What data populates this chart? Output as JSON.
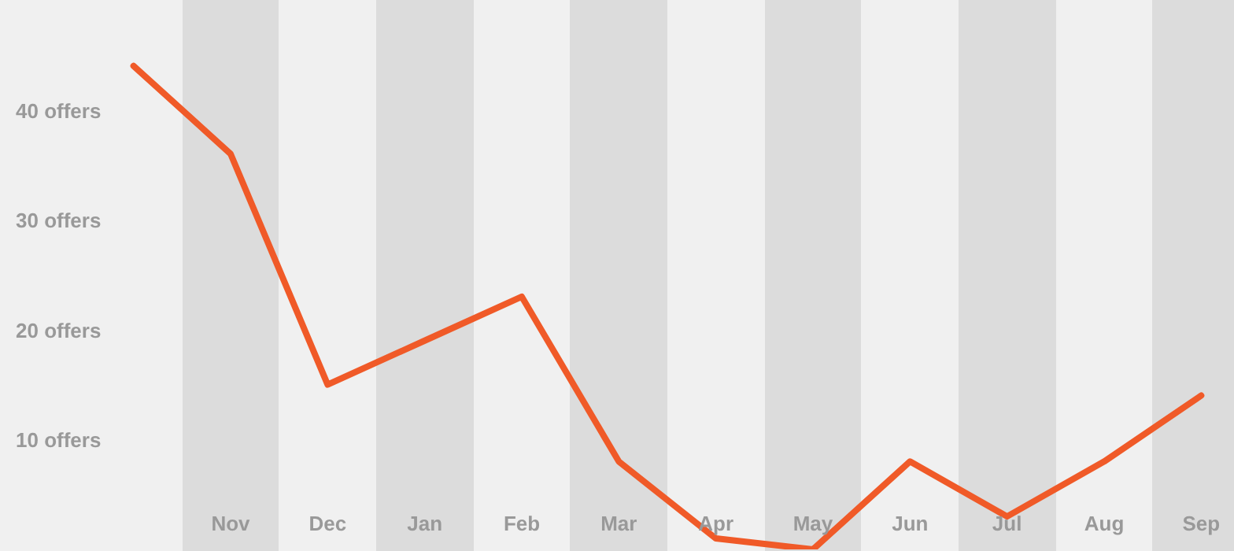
{
  "chart_data": {
    "type": "line",
    "categories": [
      null,
      "Nov",
      "Dec",
      "Jan",
      "Feb",
      "Mar",
      "Apr",
      "May",
      "Jun",
      "Jul",
      "Aug",
      "Sep"
    ],
    "series": [
      {
        "color": "#f05a28",
        "values": [
          44,
          36,
          15,
          19,
          23,
          8,
          1,
          0,
          8,
          3,
          8,
          14
        ]
      }
    ],
    "ylim": [
      0,
      50
    ],
    "yticks": [
      {
        "value": 10,
        "label": "10 offers"
      },
      {
        "value": 20,
        "label": "20 offers"
      },
      {
        "value": 30,
        "label": "30 offers"
      },
      {
        "value": 40,
        "label": "40 offers"
      }
    ],
    "grid": false,
    "legend": false,
    "marker": "none",
    "line_style": "solid"
  }
}
